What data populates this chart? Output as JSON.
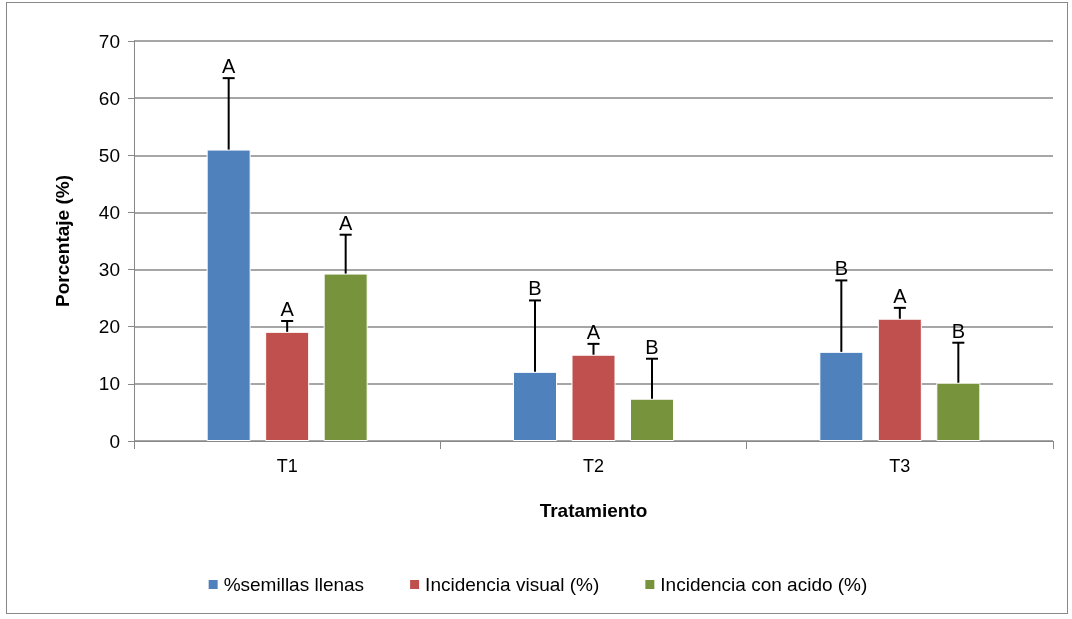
{
  "chart_data": {
    "type": "bar",
    "xlabel": "Tratamiento",
    "ylabel": "Porcentaje (%)",
    "categories": [
      "T1",
      "T2",
      "T3"
    ],
    "series": [
      {
        "name": "%semillas llenas",
        "color": "#4f81bd",
        "values": [
          51,
          12.1,
          15.6
        ],
        "errors": [
          [
            51,
            63.5
          ],
          [
            12.1,
            24.6
          ],
          [
            15.6,
            28.1
          ]
        ]
      },
      {
        "name": "Incidencia visual (%)",
        "color": "#c0504d",
        "values": [
          19.1,
          15.1,
          21.4
        ],
        "errors": [
          [
            19.1,
            21
          ],
          [
            15.1,
            17
          ],
          [
            21.4,
            23.3
          ]
        ]
      },
      {
        "name": "Incidencia con acido (%)",
        "color": "#77933c",
        "values": [
          29.3,
          7.4,
          10.2
        ],
        "errors": [
          [
            29.3,
            36.1
          ],
          [
            7.4,
            14.4
          ],
          [
            10.2,
            17.2
          ]
        ]
      }
    ],
    "annotations": [
      "A",
      "A",
      "A",
      "B",
      "A",
      "B",
      "B",
      "A",
      "B"
    ],
    "ylim": [
      0,
      70
    ],
    "yticks": [
      0,
      10,
      20,
      30,
      40,
      50,
      60,
      70
    ],
    "grid": "y",
    "legend": "bottom"
  }
}
